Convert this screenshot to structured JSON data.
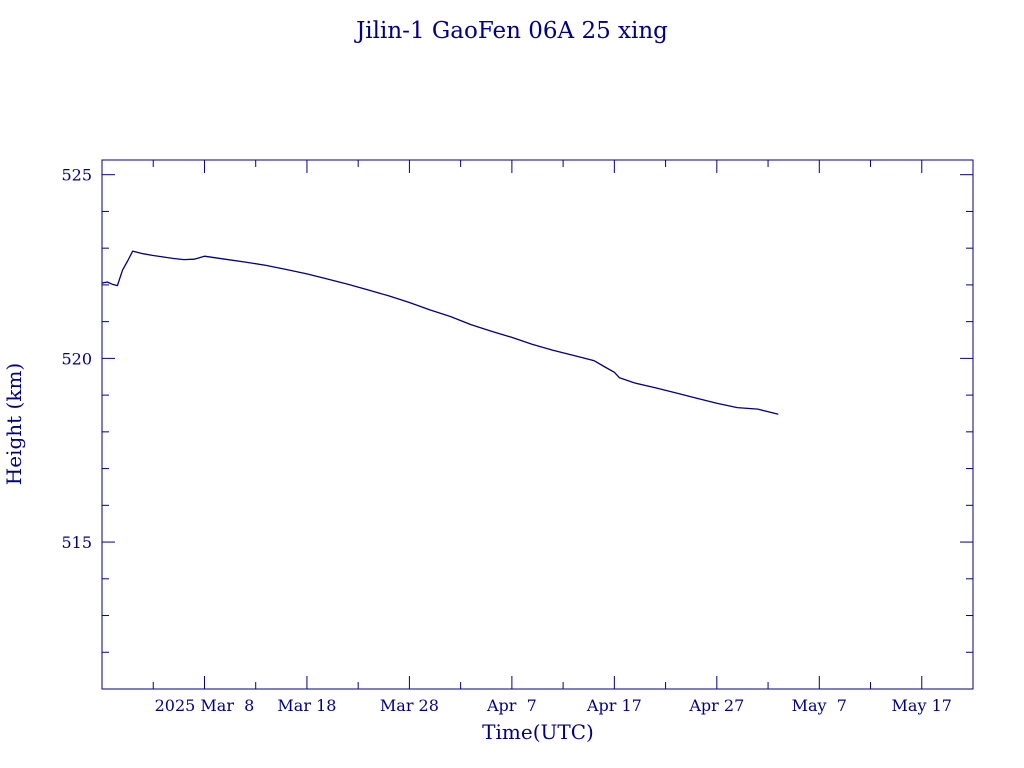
{
  "chart_data": {
    "type": "line",
    "title": "Jilin-1 GaoFen 06A 25 xing",
    "xlabel": "Time(UTC)",
    "ylabel": "Height (km)",
    "xlim": [
      "2025-02-26",
      "2025-05-22"
    ],
    "ylim": [
      511,
      525.4
    ],
    "x_ticks": [
      {
        "date": "2025-03-08",
        "label": "2025 Mar  8"
      },
      {
        "date": "2025-03-18",
        "label": "Mar 18"
      },
      {
        "date": "2025-03-28",
        "label": "Mar 28"
      },
      {
        "date": "2025-04-07",
        "label": "Apr  7"
      },
      {
        "date": "2025-04-17",
        "label": "Apr 17"
      },
      {
        "date": "2025-04-27",
        "label": "Apr 27"
      },
      {
        "date": "2025-05-07",
        "label": "May  7"
      },
      {
        "date": "2025-05-17",
        "label": "May 17"
      }
    ],
    "y_ticks": [
      515,
      520,
      525
    ],
    "grid": false,
    "line_color": "#00007f",
    "axis_color": "#00007f",
    "series": [
      {
        "x": [
          "2025-02-26",
          "2025-02-26",
          "2025-02-27",
          "2025-02-27",
          "2025-02-28",
          "2025-02-28",
          "2025-03-01",
          "2025-03-02",
          "2025-03-03",
          "2025-03-04",
          "2025-03-05",
          "2025-03-06",
          "2025-03-07",
          "2025-03-08",
          "2025-03-09",
          "2025-03-10",
          "2025-03-12",
          "2025-03-14",
          "2025-03-16",
          "2025-03-18",
          "2025-03-20",
          "2025-03-22",
          "2025-03-24",
          "2025-03-26",
          "2025-03-28",
          "2025-03-30",
          "2025-04-01",
          "2025-04-03",
          "2025-04-05",
          "2025-04-07",
          "2025-04-09",
          "2025-04-11",
          "2025-04-13",
          "2025-04-15",
          "2025-04-16",
          "2025-04-17",
          "2025-04-17",
          "2025-04-19",
          "2025-04-21",
          "2025-04-23",
          "2025-04-25",
          "2025-04-27",
          "2025-04-29",
          "2025-05-01",
          "2025-05-03"
        ],
        "y": [
          522.05,
          522.08,
          522.02,
          521.98,
          522.4,
          522.65,
          522.92,
          522.85,
          522.8,
          522.76,
          522.72,
          522.69,
          522.7,
          522.78,
          522.74,
          522.7,
          522.62,
          522.53,
          522.42,
          522.3,
          522.16,
          522.02,
          521.86,
          521.7,
          521.52,
          521.32,
          521.14,
          520.92,
          520.74,
          520.57,
          520.38,
          520.22,
          520.08,
          519.94,
          519.78,
          519.62,
          519.47,
          519.33,
          519.2,
          519.06,
          518.92,
          518.78,
          518.66,
          518.62,
          518.48
        ]
      }
    ]
  }
}
